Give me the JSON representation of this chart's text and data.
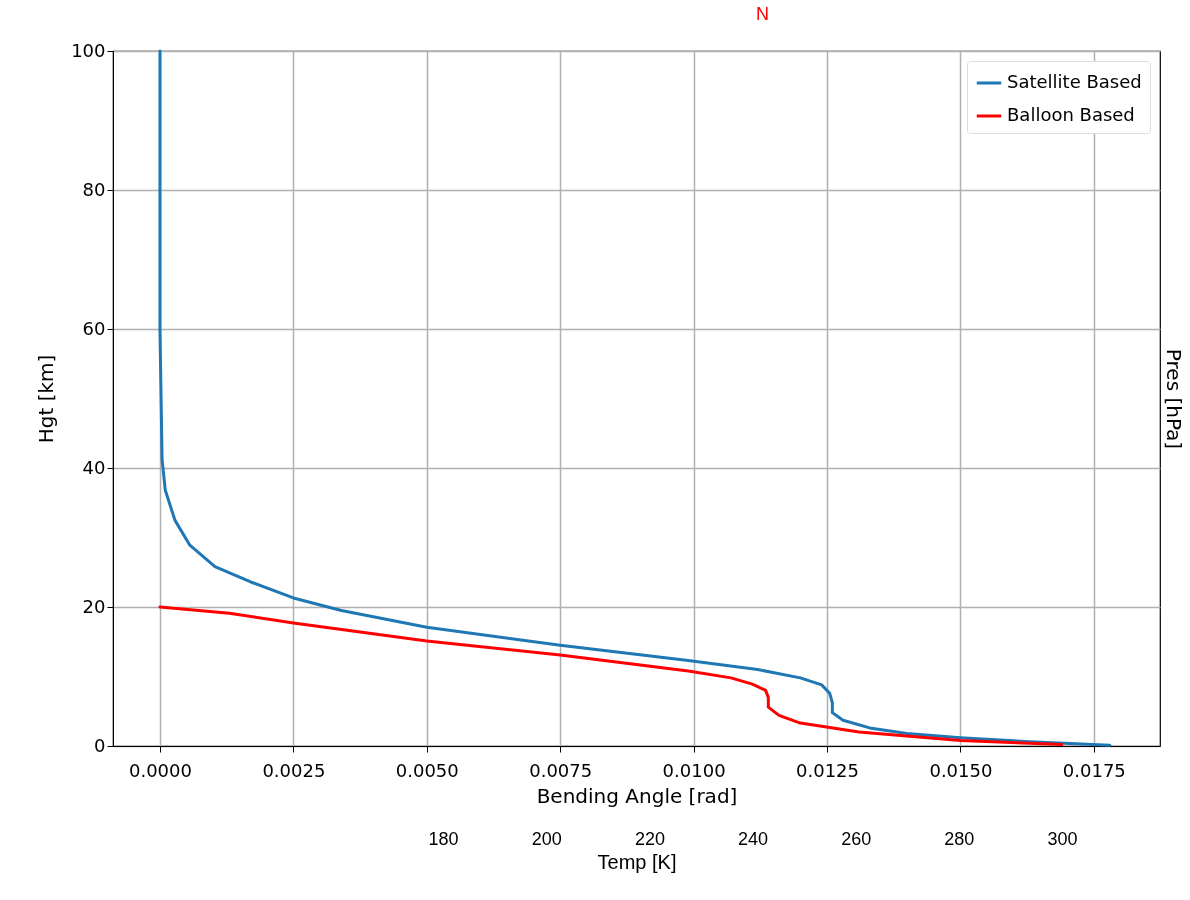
{
  "chart_data": {
    "type": "line",
    "xlabel": "Bending Angle [rad]",
    "ylabel": "Hgt [km]",
    "y2label": "Pres [hPa]",
    "x2label": "Temp [K]",
    "annotations": [
      "N"
    ],
    "xlim": [
      -0.00088,
      0.01874
    ],
    "xticks": [
      {
        "value": 0,
        "label": "0.0000"
      },
      {
        "value": 0.0025,
        "label": "0.0025"
      },
      {
        "value": 0.005,
        "label": "0.0050"
      },
      {
        "value": 0.0075,
        "label": "0.0075"
      },
      {
        "value": 0.01,
        "label": "0.0100"
      },
      {
        "value": 0.0125,
        "label": "0.0125"
      },
      {
        "value": 0.015,
        "label": "0.0150"
      },
      {
        "value": 0.0175,
        "label": "0.0175"
      }
    ],
    "ylim": [
      0,
      100
    ],
    "yticks": [
      0,
      20,
      40,
      60,
      80,
      100
    ],
    "x2lim": [
      116,
      319
    ],
    "x2ticks": [
      180,
      200,
      220,
      240,
      260,
      280,
      300
    ],
    "grid": true,
    "legend": "top right",
    "line_style": "solid",
    "marker": "none",
    "series": [
      {
        "name": "Satellite Based",
        "color": "#1f77b4",
        "x": [
          0,
          0,
          4e-05,
          0.0001,
          0.00028,
          0.00056,
          0.00103,
          0.0017,
          0.0025,
          0.0034,
          0.005,
          0.0075,
          0.0099,
          0.0112,
          0.012,
          0.0124,
          0.01255,
          0.0126,
          0.0126,
          0.0128,
          0.0133,
          0.014,
          0.015,
          0.0163,
          0.0178
        ],
        "values": [
          100,
          60,
          41.2,
          36.8,
          32.5,
          28.9,
          25.8,
          23.6,
          21.3,
          19.5,
          17.1,
          14.5,
          12.3,
          11,
          9.8,
          8.8,
          7.6,
          6.2,
          4.8,
          3.7,
          2.6,
          1.8,
          1.2,
          0.6,
          0.1
        ]
      },
      {
        "name": "Balloon Based",
        "color": "#ff0000",
        "x": [
          0,
          0.0013,
          0.0025,
          0.005,
          0.0075,
          0.0099,
          0.0107,
          0.0111,
          0.01135,
          0.0114,
          0.0114,
          0.0116,
          0.012,
          0.0131,
          0.015,
          0.0169
        ],
        "values": [
          20,
          19.1,
          17.7,
          15.1,
          13.1,
          10.8,
          9.8,
          8.9,
          8,
          7,
          5.6,
          4.4,
          3.3,
          2,
          0.8,
          0.2
        ]
      }
    ]
  }
}
